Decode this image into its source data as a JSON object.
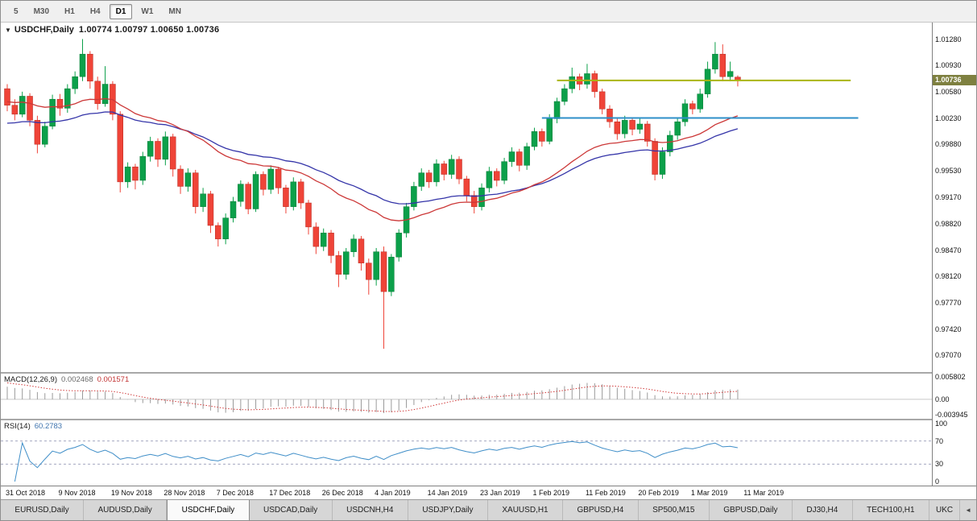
{
  "toolbar": {
    "timeframes": [
      {
        "label": "5",
        "active": false
      },
      {
        "label": "M30",
        "active": false
      },
      {
        "label": "H1",
        "active": false
      },
      {
        "label": "H4",
        "active": false
      },
      {
        "label": "D1",
        "active": true
      },
      {
        "label": "W1",
        "active": false
      },
      {
        "label": "MN",
        "active": false
      }
    ]
  },
  "chart": {
    "dropdown_icon": "▼",
    "symbol_label": "USDCHF,Daily",
    "ohlc_text": "1.00774 1.00797 1.00650 1.00736",
    "current_price": "1.00736"
  },
  "macd_panel": {
    "name": "MACD(12,26,9)",
    "value_main": "0.002468",
    "value_signal": "0.001571",
    "axis_labels": [
      "0.005802",
      "0.00",
      "-0.003945"
    ]
  },
  "rsi_panel": {
    "name": "RSI(14)",
    "value": "60.2783",
    "axis_labels": [
      "100",
      "70",
      "30",
      "0"
    ]
  },
  "tabs": {
    "scroll_left_icon": "◄",
    "items": [
      {
        "label": "EURUSD,Daily",
        "active": false
      },
      {
        "label": "AUDUSD,Daily",
        "active": false
      },
      {
        "label": "USDCHF,Daily",
        "active": true
      },
      {
        "label": "USDCAD,Daily",
        "active": false
      },
      {
        "label": "USDCNH,H4",
        "active": false
      },
      {
        "label": "USDJPY,Daily",
        "active": false
      },
      {
        "label": "XAUUSD,H1",
        "active": false
      },
      {
        "label": "GBPUSD,H4",
        "active": false
      },
      {
        "label": "SP500,M15",
        "active": false
      },
      {
        "label": "GBPUSD,Daily",
        "active": false
      },
      {
        "label": "DJ30,H4",
        "active": false
      },
      {
        "label": "TECH100,H1",
        "active": false
      },
      {
        "label": "UKC",
        "active": false,
        "truncated": true
      }
    ]
  },
  "colors": {
    "candle_up": "#0ca04a",
    "candle_up_border": "#067a36",
    "candle_down": "#ef4438",
    "candle_down_border": "#b52c23",
    "ma_fast": "#cc3838",
    "ma_slow": "#3434a8",
    "resistance": "#aab411",
    "support": "#2e8fc9",
    "macd_hist": "#9a9a9a",
    "macd_signal": "#d03a3a",
    "macd_zero": "#c9c9c9",
    "rsi_line": "#3f8ec8",
    "level_dash": "#a4a8c0",
    "price_tag_bg": "#7e8040"
  },
  "chart_data": {
    "type": "candlestick",
    "title": "USDCHF,Daily",
    "ohlc_readout": {
      "open": "1.00774",
      "high": "1.00797",
      "low": "1.00650",
      "close": "1.00736"
    },
    "y_axis_ticks": [
      "1.01280",
      "1.00930",
      "1.00580",
      "1.00230",
      "0.99880",
      "0.99530",
      "0.99170",
      "0.98820",
      "0.98470",
      "0.98120",
      "0.97770",
      "0.97420",
      "0.97070"
    ],
    "x_axis_dates": [
      "31 Oct 2018",
      "9 Nov 2018",
      "19 Nov 2018",
      "28 Nov 2018",
      "7 Dec 2018",
      "17 Dec 2018",
      "26 Dec 2018",
      "4 Jan 2019",
      "14 Jan 2019",
      "23 Jan 2019",
      "1 Feb 2019",
      "11 Feb 2019",
      "20 Feb 2019",
      "1 Mar 2019",
      "11 Mar 2019"
    ],
    "candles": [
      [
        1.0062,
        1.0068,
        1.0032,
        1.004
      ],
      [
        1.004,
        1.0048,
        1.002,
        1.0028
      ],
      [
        1.0028,
        1.0058,
        1.0024,
        1.0052
      ],
      [
        1.0052,
        1.0056,
        1.0012,
        1.002
      ],
      [
        1.002,
        1.0026,
        0.9976,
        0.9988
      ],
      [
        0.9988,
        1.0018,
        0.9984,
        1.0012
      ],
      [
        1.0012,
        1.0054,
        1.0008,
        1.0048
      ],
      [
        1.0048,
        1.0055,
        1.0026,
        1.0036
      ],
      [
        1.0036,
        1.0068,
        1.003,
        1.0062
      ],
      [
        1.0062,
        1.0085,
        1.0055,
        1.0078
      ],
      [
        1.0078,
        1.0128,
        1.0072,
        1.0108
      ],
      [
        1.0108,
        1.0112,
        1.0062,
        1.0072
      ],
      [
        1.0072,
        1.0078,
        1.0034,
        1.0042
      ],
      [
        1.0042,
        1.0092,
        1.0038,
        1.0068
      ],
      [
        1.0068,
        1.0072,
        1.002,
        1.0028
      ],
      [
        1.0028,
        1.0032,
        0.9924,
        0.9938
      ],
      [
        0.9938,
        0.9964,
        0.993,
        0.9958
      ],
      [
        0.9958,
        0.9962,
        0.9928,
        0.994
      ],
      [
        0.994,
        0.9978,
        0.9934,
        0.9972
      ],
      [
        0.9972,
        0.9998,
        0.9965,
        0.9992
      ],
      [
        0.9992,
        0.9996,
        0.9958,
        0.9968
      ],
      [
        0.9968,
        1.0005,
        0.996,
        0.9998
      ],
      [
        0.9998,
        1.0002,
        0.9945,
        0.9955
      ],
      [
        0.9955,
        0.996,
        0.9922,
        0.9932
      ],
      [
        0.9932,
        0.9956,
        0.9925,
        0.995
      ],
      [
        0.995,
        0.9954,
        0.9896,
        0.9905
      ],
      [
        0.9905,
        0.993,
        0.9898,
        0.9922
      ],
      [
        0.9922,
        0.9926,
        0.987,
        0.988
      ],
      [
        0.988,
        0.9884,
        0.9852,
        0.9862
      ],
      [
        0.9862,
        0.9896,
        0.9855,
        0.989
      ],
      [
        0.989,
        0.9918,
        0.9884,
        0.9912
      ],
      [
        0.9912,
        0.994,
        0.9905,
        0.9935
      ],
      [
        0.9935,
        0.9938,
        0.9895,
        0.9902
      ],
      [
        0.9902,
        0.9952,
        0.9898,
        0.9948
      ],
      [
        0.9948,
        0.9952,
        0.992,
        0.9928
      ],
      [
        0.9928,
        0.996,
        0.9922,
        0.9955
      ],
      [
        0.9955,
        0.9958,
        0.9922,
        0.993
      ],
      [
        0.993,
        0.9934,
        0.9896,
        0.9905
      ],
      [
        0.9905,
        0.9944,
        0.99,
        0.9938
      ],
      [
        0.9938,
        0.9942,
        0.9902,
        0.991
      ],
      [
        0.991,
        0.9914,
        0.9868,
        0.9878
      ],
      [
        0.9878,
        0.9884,
        0.9842,
        0.9852
      ],
      [
        0.9852,
        0.9876,
        0.9846,
        0.987
      ],
      [
        0.987,
        0.9874,
        0.983,
        0.984
      ],
      [
        0.984,
        0.9846,
        0.9798,
        0.9815
      ],
      [
        0.9815,
        0.985,
        0.9808,
        0.9845
      ],
      [
        0.9845,
        0.9868,
        0.9838,
        0.9862
      ],
      [
        0.9862,
        0.9866,
        0.982,
        0.983
      ],
      [
        0.983,
        0.9836,
        0.9788,
        0.9808
      ],
      [
        0.9808,
        0.985,
        0.98,
        0.9845
      ],
      [
        0.9845,
        0.9852,
        0.9716,
        0.9792
      ],
      [
        0.9792,
        0.9842,
        0.9786,
        0.9838
      ],
      [
        0.9838,
        0.9875,
        0.9832,
        0.987
      ],
      [
        0.987,
        0.991,
        0.9864,
        0.9905
      ],
      [
        0.9905,
        0.9938,
        0.99,
        0.9932
      ],
      [
        0.9932,
        0.9956,
        0.9926,
        0.995
      ],
      [
        0.995,
        0.9954,
        0.993,
        0.9938
      ],
      [
        0.9938,
        0.9968,
        0.9932,
        0.9962
      ],
      [
        0.9962,
        0.9966,
        0.994,
        0.9948
      ],
      [
        0.9948,
        0.9974,
        0.9942,
        0.9968
      ],
      [
        0.9968,
        0.9972,
        0.9935,
        0.9942
      ],
      [
        0.9942,
        0.9946,
        0.9912,
        0.992
      ],
      [
        0.992,
        0.9926,
        0.9896,
        0.9905
      ],
      [
        0.9905,
        0.9936,
        0.99,
        0.993
      ],
      [
        0.993,
        0.9958,
        0.9924,
        0.9952
      ],
      [
        0.9952,
        0.9956,
        0.9932,
        0.994
      ],
      [
        0.994,
        0.997,
        0.9935,
        0.9965
      ],
      [
        0.9965,
        0.9984,
        0.9958,
        0.9978
      ],
      [
        0.9978,
        0.9982,
        0.9952,
        0.996
      ],
      [
        0.996,
        0.999,
        0.9954,
        0.9985
      ],
      [
        0.9985,
        1.001,
        0.998,
        1.0005
      ],
      [
        1.0005,
        1.0009,
        0.9985,
        0.9992
      ],
      [
        0.9992,
        1.0028,
        0.9988,
        1.0022
      ],
      [
        1.0022,
        1.005,
        1.0016,
        1.0045
      ],
      [
        1.0045,
        1.0068,
        1.004,
        1.0062
      ],
      [
        1.0062,
        1.009,
        1.0056,
        1.0078
      ],
      [
        1.0078,
        1.0082,
        1.006,
        1.0068
      ],
      [
        1.0068,
        1.0095,
        1.0062,
        1.0082
      ],
      [
        1.0082,
        1.0086,
        1.005,
        1.0058
      ],
      [
        1.0058,
        1.0062,
        1.0028,
        1.0035
      ],
      [
        1.0035,
        1.004,
        1.001,
        1.0018
      ],
      [
        1.0018,
        1.0024,
        0.9994,
        1.0002
      ],
      [
        1.0002,
        1.0026,
        0.9996,
        1.002
      ],
      [
        1.002,
        1.0024,
        1.0,
        1.0008
      ],
      [
        1.0008,
        1.0022,
        1.0002,
        1.0015
      ],
      [
        1.0015,
        1.0019,
        0.9985,
        0.9992
      ],
      [
        0.9992,
        0.9996,
        0.994,
        0.9948
      ],
      [
        0.9948,
        0.9984,
        0.9942,
        0.9978
      ],
      [
        0.9978,
        1.0006,
        0.9972,
        1.0
      ],
      [
        1.0,
        1.0024,
        0.9994,
        1.0018
      ],
      [
        1.0018,
        1.0048,
        1.0012,
        1.0042
      ],
      [
        1.0042,
        1.0046,
        1.0028,
        1.0035
      ],
      [
        1.0035,
        1.0062,
        1.003,
        1.0055
      ],
      [
        1.0055,
        1.0098,
        1.005,
        1.0088
      ],
      [
        1.0088,
        1.0124,
        1.0082,
        1.0108
      ],
      [
        1.0108,
        1.0121,
        1.0072,
        1.0078
      ],
      [
        1.0078,
        1.0098,
        1.0072,
        1.0085
      ],
      [
        1.00774,
        1.00797,
        1.0065,
        1.00736
      ]
    ],
    "overlay_lines": [
      {
        "name": "resistance-line",
        "price": 1.0073,
        "from_index": 73,
        "to_index": 112
      },
      {
        "name": "support-line",
        "price": 1.0023,
        "from_index": 71,
        "to_index": 113
      }
    ],
    "moving_averages": [
      {
        "name": "ma-fast",
        "period": 30,
        "seed": 1.0045
      },
      {
        "name": "ma-slow",
        "period": 45,
        "seed": 1.0015
      }
    ],
    "indicators": {
      "macd": {
        "fast": 12,
        "slow": 26,
        "signal": 9,
        "main_value": 0.002468,
        "signal_value": 0.001571,
        "scale_labels": [
          0.005802,
          0.0,
          -0.003945
        ]
      },
      "rsi": {
        "period": 14,
        "value": 60.2783,
        "levels": [
          70,
          30
        ],
        "scale_labels": [
          100,
          70,
          30,
          0
        ]
      }
    }
  }
}
